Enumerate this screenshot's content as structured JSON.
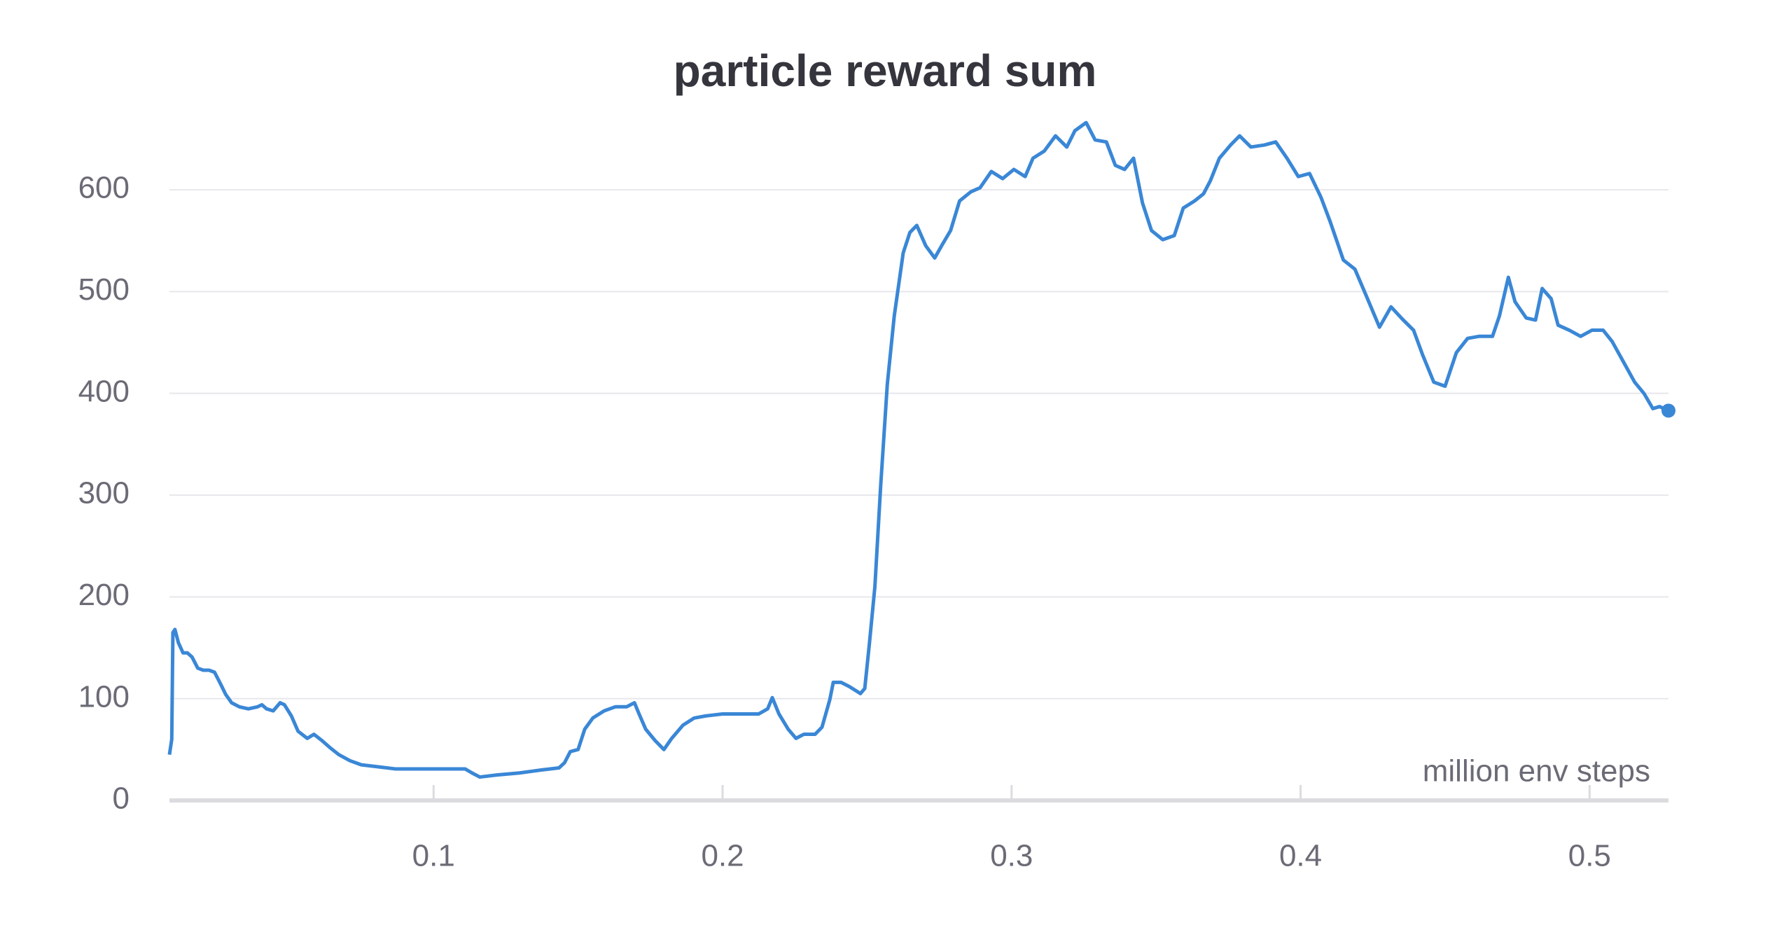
{
  "chart_data": {
    "type": "line",
    "title": "particle reward sum",
    "x_label": "million env steps",
    "x": [
      0.0086,
      0.0094,
      0.0098,
      0.0105,
      0.0117,
      0.0133,
      0.0148,
      0.0164,
      0.0184,
      0.0203,
      0.0223,
      0.0242,
      0.0262,
      0.0281,
      0.0301,
      0.0328,
      0.0359,
      0.0391,
      0.0406,
      0.0422,
      0.0445,
      0.0469,
      0.0484,
      0.0508,
      0.0531,
      0.0563,
      0.0586,
      0.0613,
      0.0641,
      0.0672,
      0.0711,
      0.075,
      0.0809,
      0.0867,
      0.0945,
      0.1023,
      0.1082,
      0.1109,
      0.1133,
      0.116,
      0.1219,
      0.1297,
      0.1375,
      0.1434,
      0.1453,
      0.1473,
      0.15,
      0.1523,
      0.1551,
      0.159,
      0.1629,
      0.1668,
      0.1695,
      0.1711,
      0.1734,
      0.1766,
      0.1797,
      0.1824,
      0.1863,
      0.1902,
      0.1941,
      0.2,
      0.2078,
      0.2125,
      0.2156,
      0.2172,
      0.2195,
      0.2227,
      0.2254,
      0.2281,
      0.232,
      0.2344,
      0.2371,
      0.2383,
      0.241,
      0.2438,
      0.2477,
      0.2492,
      0.2508,
      0.2527,
      0.2547,
      0.257,
      0.2594,
      0.2625,
      0.2648,
      0.2672,
      0.2703,
      0.2734,
      0.2762,
      0.2789,
      0.282,
      0.2859,
      0.2891,
      0.293,
      0.2969,
      0.3008,
      0.3047,
      0.3074,
      0.3113,
      0.3152,
      0.3191,
      0.3219,
      0.3258,
      0.3289,
      0.3328,
      0.3359,
      0.3391,
      0.3422,
      0.3453,
      0.3484,
      0.3523,
      0.3563,
      0.3594,
      0.3633,
      0.3664,
      0.3688,
      0.3719,
      0.3758,
      0.3789,
      0.3828,
      0.3875,
      0.3914,
      0.3953,
      0.3992,
      0.4031,
      0.407,
      0.4102,
      0.4148,
      0.4188,
      0.4227,
      0.4273,
      0.4313,
      0.4352,
      0.4391,
      0.4422,
      0.4461,
      0.45,
      0.4539,
      0.4578,
      0.4617,
      0.4664,
      0.4688,
      0.4719,
      0.4742,
      0.4781,
      0.4813,
      0.4836,
      0.4867,
      0.4891,
      0.493,
      0.4969,
      0.5008,
      0.5047,
      0.5078,
      0.5117,
      0.5156,
      0.5188,
      0.5219,
      0.5242,
      0.5273
    ],
    "series": [
      {
        "color": "#3a87d6",
        "values": [
          45,
          60,
          165,
          168,
          155,
          145,
          145,
          141,
          130,
          128,
          128,
          126,
          115,
          104,
          96,
          92,
          90,
          92,
          94,
          90,
          88,
          96,
          94,
          83,
          68,
          61,
          65,
          59,
          52,
          45,
          39,
          35,
          33,
          31,
          31,
          31,
          31,
          31,
          27,
          23,
          25,
          27,
          30,
          32,
          37,
          48,
          50,
          70,
          81,
          88,
          92,
          92,
          96,
          85,
          70,
          59,
          50,
          61,
          74,
          81,
          83,
          85,
          85,
          85,
          90,
          101,
          85,
          70,
          61,
          65,
          65,
          72,
          99,
          116,
          116,
          112,
          105,
          110,
          154,
          210,
          309,
          409,
          476,
          538,
          558,
          565,
          545,
          533,
          547,
          560,
          589,
          598,
          602,
          618,
          611,
          620,
          613,
          631,
          638,
          653,
          642,
          658,
          666,
          649,
          647,
          624,
          620,
          631,
          587,
          560,
          551,
          555,
          582,
          589,
          596,
          609,
          631,
          644,
          653,
          642,
          644,
          647,
          631,
          613,
          616,
          593,
          569,
          531,
          522,
          496,
          465,
          485,
          473,
          462,
          438,
          411,
          407,
          440,
          454,
          456,
          456,
          476,
          514,
          490,
          474,
          472,
          503,
          493,
          467,
          462,
          456,
          462,
          462,
          451,
          431,
          411,
          400,
          385,
          387,
          383
        ]
      }
    ],
    "xlim": [
      0.0086,
      0.5273
    ],
    "ylim": [
      0,
      675
    ],
    "xticks": [
      0.1,
      0.2,
      0.3,
      0.4,
      0.5
    ],
    "yticks": [
      0,
      100,
      200,
      300,
      400,
      500,
      600
    ],
    "grid": true
  }
}
